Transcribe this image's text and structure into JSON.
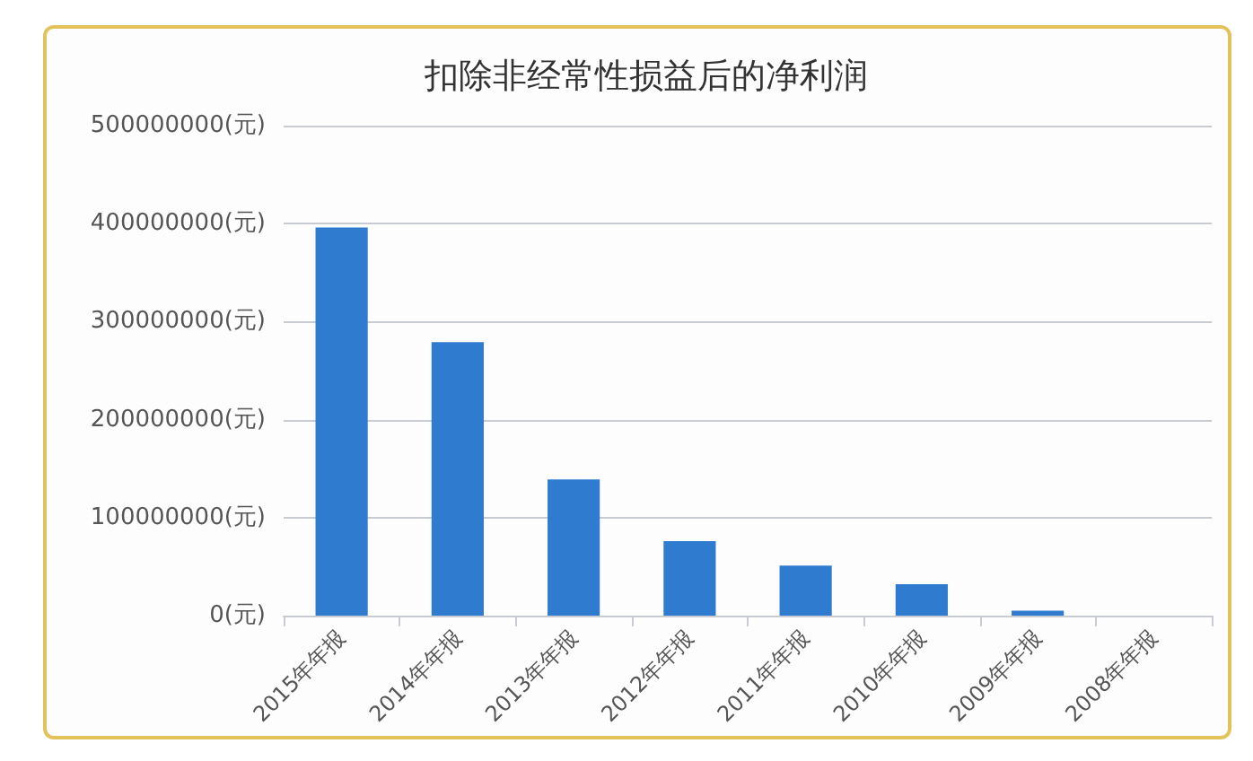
{
  "chart_data": {
    "type": "bar",
    "title": "扣除非经常性损益后的净利润",
    "categories": [
      "2015年年报",
      "2014年年报",
      "2013年年报",
      "2012年年报",
      "2011年年报",
      "2010年年报",
      "2009年年报",
      "2008年年报"
    ],
    "values": [
      396000000,
      279000000,
      139000000,
      76000000,
      51000000,
      32000000,
      5000000,
      null
    ],
    "color": "#2f7bd0",
    "ylim": [
      0,
      500000000
    ],
    "yticks": [
      {
        "value": 0,
        "label": "0(元)"
      },
      {
        "value": 100000000,
        "label": "100000000(元)"
      },
      {
        "value": 200000000,
        "label": "200000000(元)"
      },
      {
        "value": 300000000,
        "label": "300000000(元)"
      },
      {
        "value": 400000000,
        "label": "400000000(元)"
      },
      {
        "value": 500000000,
        "label": "500000000(元)"
      }
    ],
    "grid": "y"
  }
}
